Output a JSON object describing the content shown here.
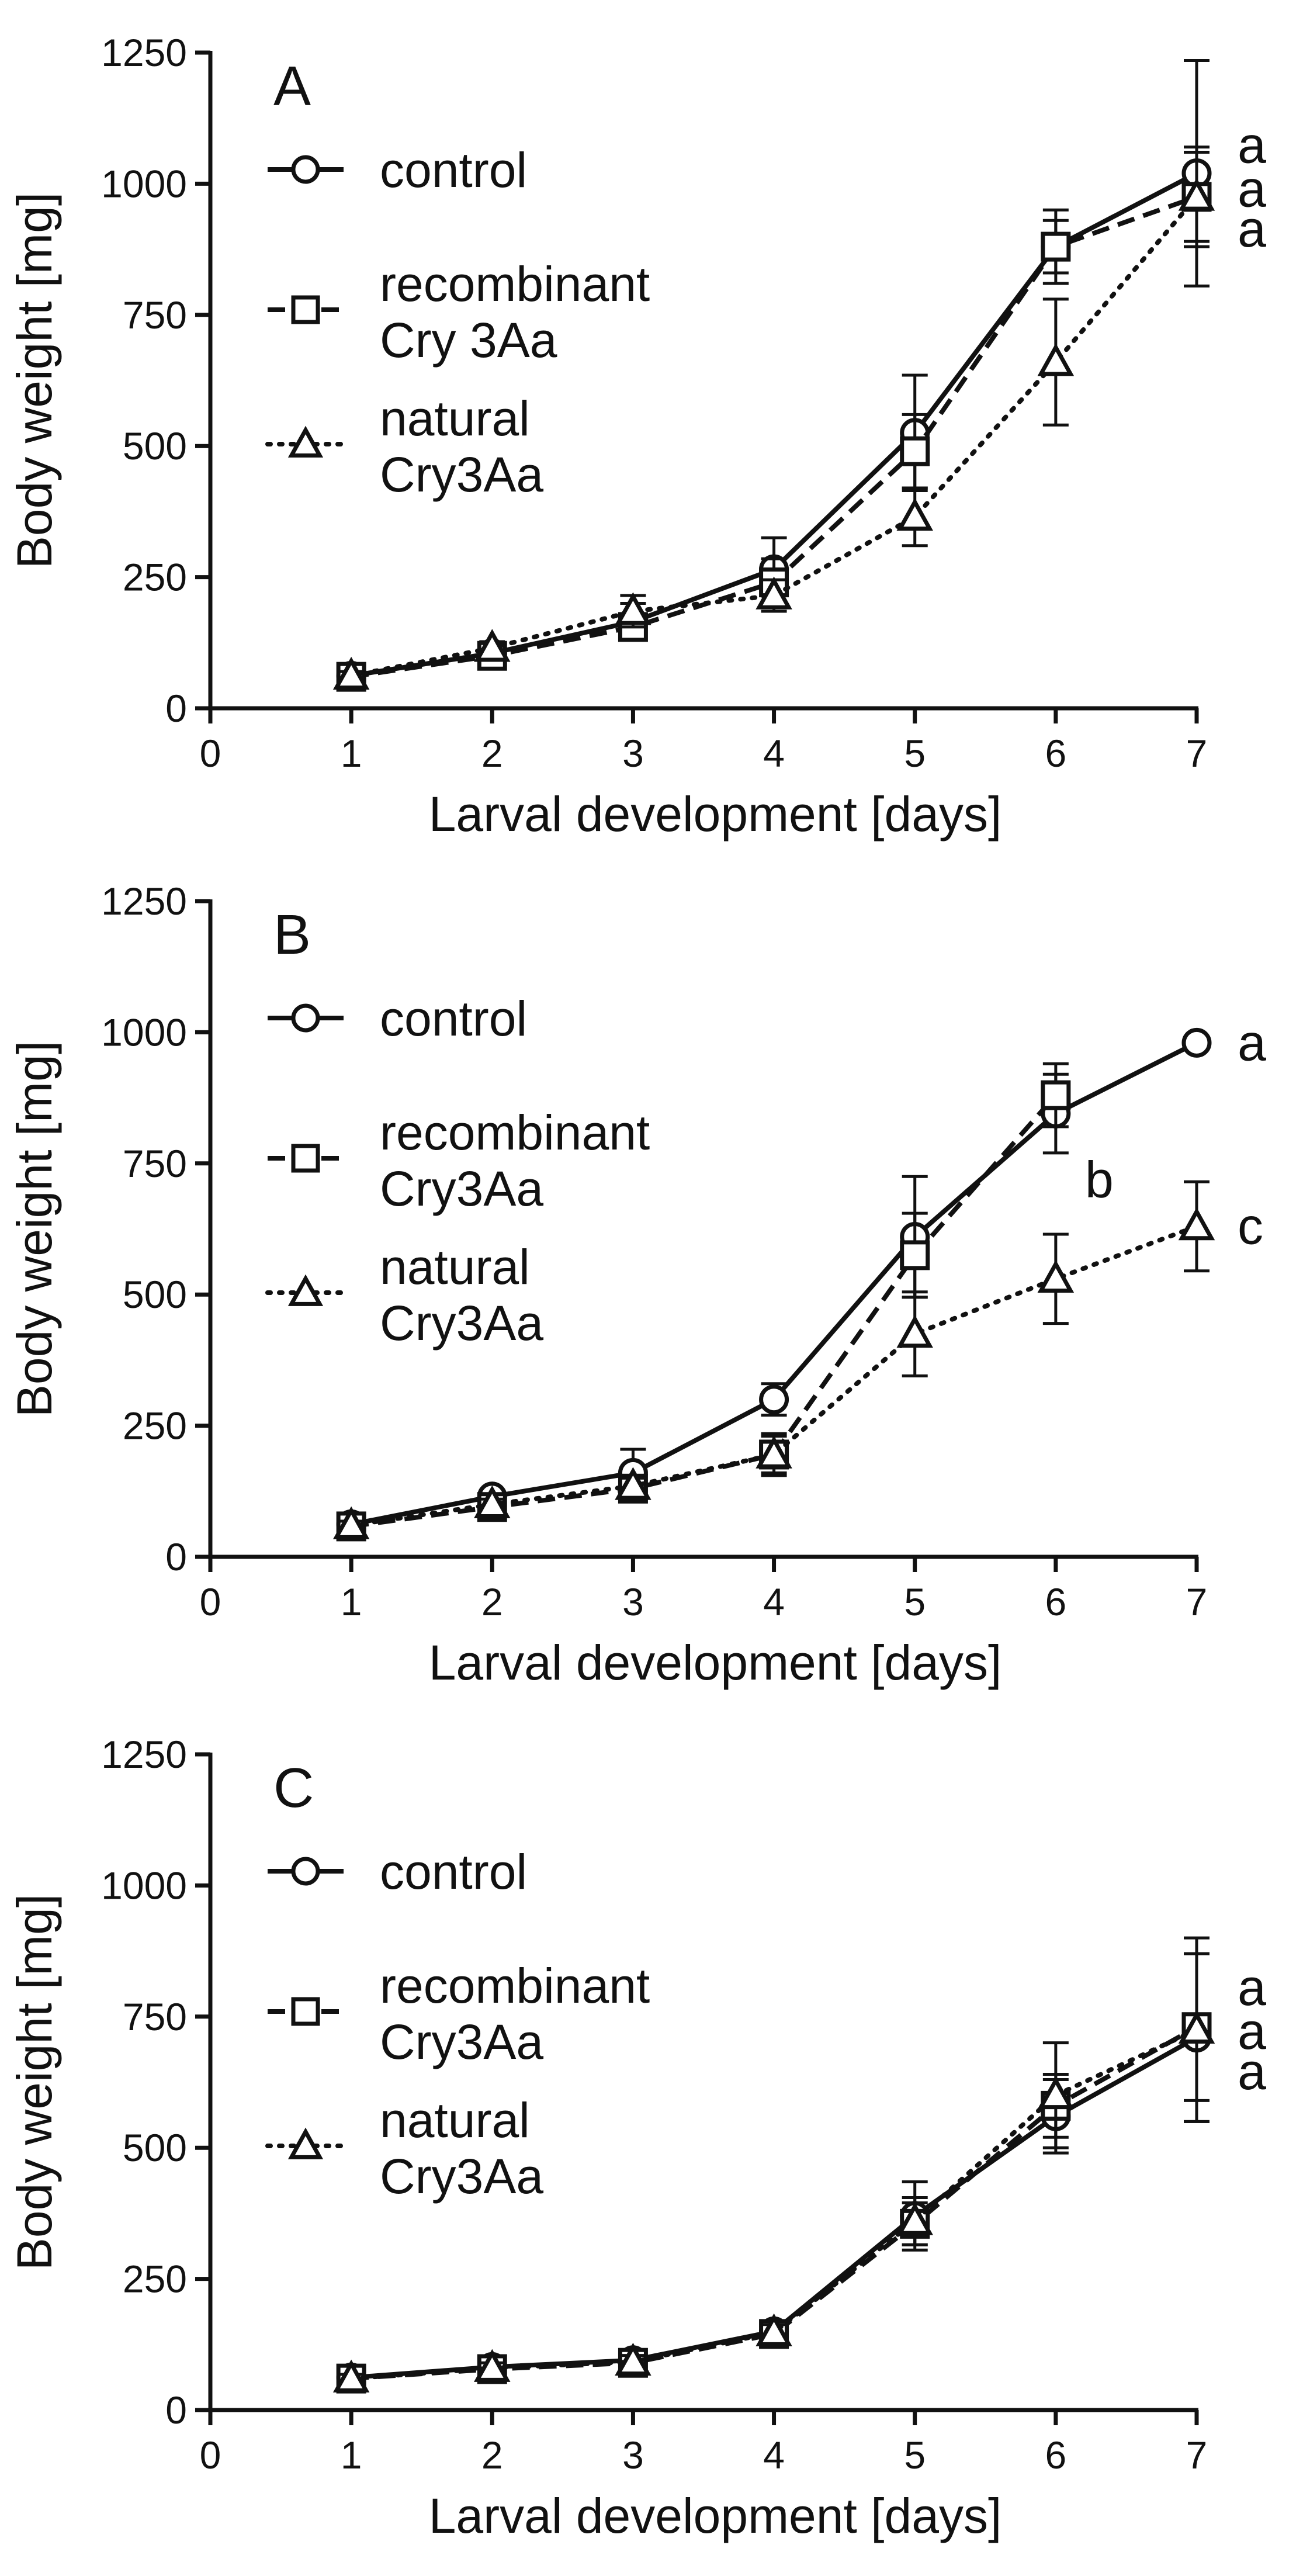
{
  "chart_data": [
    {
      "type": "line",
      "panel_label": "A",
      "xlabel": "Larval development [days]",
      "ylabel": "Body weight [mg]",
      "xlim": [
        0,
        7
      ],
      "ylim": [
        0,
        1250
      ],
      "x_ticks": [
        0,
        1,
        2,
        3,
        4,
        5,
        6,
        7
      ],
      "y_ticks": [
        0,
        250,
        500,
        750,
        1000,
        1250
      ],
      "x": [
        1,
        2,
        3,
        4,
        5,
        6,
        7
      ],
      "series": [
        {
          "name": "control",
          "marker": "circle",
          "line": "solid",
          "values": [
            62,
            105,
            165,
            265,
            525,
            880,
            1020
          ],
          "errors": [
            8,
            12,
            35,
            60,
            110,
            70,
            215
          ]
        },
        {
          "name": "recombinant\nCry 3Aa",
          "marker": "square",
          "line": "dashed",
          "values": [
            60,
            100,
            155,
            240,
            490,
            880,
            975
          ],
          "errors": [
            8,
            10,
            25,
            45,
            70,
            50,
            95
          ]
        },
        {
          "name": "natural\nCry3Aa",
          "marker": "triangle",
          "line": "dotted",
          "values": [
            62,
            115,
            185,
            215,
            365,
            660,
            975
          ],
          "errors": [
            8,
            12,
            30,
            30,
            55,
            120,
            85
          ]
        }
      ],
      "significance": [
        "a",
        "a",
        "a"
      ],
      "legend_position": "top-left",
      "grid": false
    },
    {
      "type": "line",
      "panel_label": "B",
      "xlabel": "Larval development [days]",
      "ylabel": "Body weight [mg]",
      "xlim": [
        0,
        7
      ],
      "ylim": [
        0,
        1250
      ],
      "x_ticks": [
        0,
        1,
        2,
        3,
        4,
        5,
        6,
        7
      ],
      "y_ticks": [
        0,
        250,
        500,
        750,
        1000,
        1250
      ],
      "x": [
        1,
        2,
        3,
        4,
        5,
        6,
        7
      ],
      "series": [
        {
          "name": "control",
          "marker": "circle",
          "line": "solid",
          "values": [
            62,
            115,
            160,
            300,
            610,
            845,
            980
          ],
          "errors": [
            8,
            12,
            45,
            30,
            115,
            75,
            0
          ]
        },
        {
          "name": "recombinant\nCry3Aa",
          "marker": "square",
          "line": "dashed",
          "values": [
            58,
            95,
            130,
            195,
            575,
            880,
            null
          ],
          "errors": [
            8,
            10,
            20,
            40,
            80,
            60,
            0
          ]
        },
        {
          "name": "natural\nCry3Aa",
          "marker": "triangle",
          "line": "dotted",
          "values": [
            60,
            100,
            135,
            195,
            425,
            530,
            630
          ],
          "errors": [
            8,
            10,
            15,
            35,
            80,
            85,
            85
          ]
        }
      ],
      "significance": [
        "a",
        "b",
        "c"
      ],
      "legend_position": "top-left",
      "grid": false
    },
    {
      "type": "line",
      "panel_label": "C",
      "xlabel": "Larval development [days]",
      "ylabel": "Body weight [mg]",
      "xlim": [
        0,
        7
      ],
      "ylim": [
        0,
        1250
      ],
      "x_ticks": [
        0,
        1,
        2,
        3,
        4,
        5,
        6,
        7
      ],
      "y_ticks": [
        0,
        250,
        500,
        750,
        1000,
        1250
      ],
      "x": [
        1,
        2,
        3,
        4,
        5,
        6,
        7
      ],
      "series": [
        {
          "name": "control",
          "marker": "circle",
          "line": "solid",
          "values": [
            62,
            82,
            95,
            150,
            370,
            560,
            710
          ],
          "errors": [
            8,
            10,
            12,
            15,
            65,
            70,
            160
          ]
        },
        {
          "name": "recombinant\nCry3Aa",
          "marker": "square",
          "line": "dashed",
          "values": [
            60,
            78,
            90,
            145,
            355,
            580,
            730
          ],
          "errors": [
            8,
            10,
            12,
            15,
            40,
            60,
            140
          ]
        },
        {
          "name": "natural\nCry3Aa",
          "marker": "triangle",
          "line": "dotted",
          "values": [
            60,
            80,
            92,
            148,
            360,
            600,
            725
          ],
          "errors": [
            8,
            10,
            12,
            15,
            45,
            100,
            175
          ]
        }
      ],
      "significance": [
        "a",
        "a",
        "a"
      ],
      "legend_position": "top-left",
      "grid": false
    }
  ]
}
